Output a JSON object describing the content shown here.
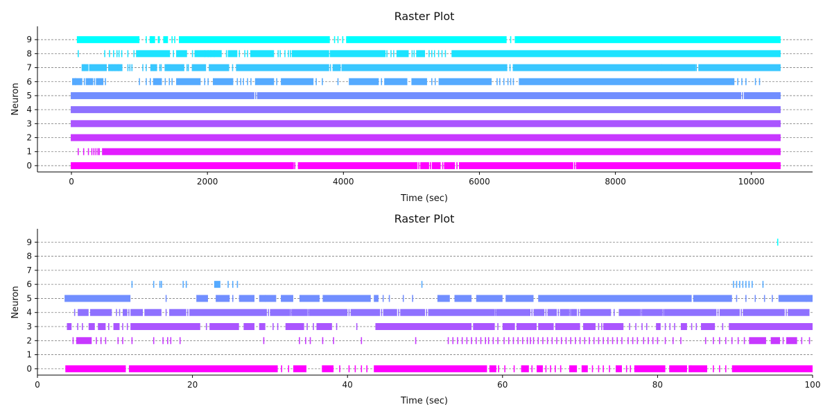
{
  "chart_data": [
    {
      "type": "raster",
      "title": "Raster Plot",
      "xlabel": "Time (sec)",
      "ylabel": "Neuron",
      "xlim": [
        -500,
        10900
      ],
      "ylim": [
        -0.45,
        9.95
      ],
      "xticks": [
        0,
        2000,
        4000,
        6000,
        8000,
        10000
      ],
      "yticks": [
        0,
        1,
        2,
        3,
        4,
        5,
        6,
        7,
        8,
        9
      ],
      "grid": "horizontal dashed",
      "rows": [
        {
          "neuron": 0,
          "color": "#ff00ff",
          "segments": [
            [
              -10,
              3270
            ],
            [
              3330,
              5090
            ],
            [
              5130,
              5260
            ],
            [
              5300,
              5430
            ],
            [
              5480,
              5640
            ],
            [
              5700,
              7380
            ],
            [
              7420,
              10430
            ]
          ],
          "spikes": [
            3230,
            3285,
            5110,
            5280,
            5460,
            5670,
            7400
          ]
        },
        {
          "neuron": 1,
          "color": "#e31cff",
          "segments": [
            [
              450,
              10430
            ]
          ],
          "spikes": [
            100,
            180,
            250,
            300,
            330,
            360,
            390,
            410
          ]
        },
        {
          "neuron": 2,
          "color": "#c738ff",
          "segments": [
            [
              -10,
              10430
            ]
          ],
          "spikes": []
        },
        {
          "neuron": 3,
          "color": "#aa55ff",
          "segments": [
            [
              -10,
              10430
            ]
          ],
          "spikes": []
        },
        {
          "neuron": 4,
          "color": "#8e71ff",
          "segments": [
            [
              -10,
              10430
            ]
          ],
          "spikes": []
        },
        {
          "neuron": 5,
          "color": "#718eff",
          "segments": [
            [
              -10,
              2690
            ],
            [
              2730,
              9850
            ],
            [
              9890,
              10430
            ]
          ],
          "spikes": [
            2710,
            9870
          ]
        },
        {
          "neuron": 6,
          "color": "#55aaff",
          "segments": [
            [
              10,
              160
            ],
            [
              210,
              320
            ],
            [
              360,
              470
            ],
            [
              1200,
              1330
            ],
            [
              1540,
              1900
            ],
            [
              2080,
              2380
            ],
            [
              2700,
              2980
            ],
            [
              3080,
              3560
            ],
            [
              4080,
              4520
            ],
            [
              4600,
              4940
            ],
            [
              5000,
              5230
            ],
            [
              5400,
              6180
            ],
            [
              6580,
              9750
            ]
          ],
          "spikes": [
            60,
            190,
            340,
            500,
            1000,
            1100,
            1160,
            1380,
            1440,
            1480,
            1960,
            2010,
            2440,
            2490,
            2530,
            2590,
            2640,
            3020,
            3600,
            3690,
            3920,
            4560,
            5300,
            5350,
            6260,
            6300,
            6360,
            6420,
            6460,
            6500,
            9800,
            9860,
            9920,
            10060,
            10120
          ]
        },
        {
          "neuron": 7,
          "color": "#38c7ff",
          "segments": [
            [
              150,
              250
            ],
            [
              260,
              520
            ],
            [
              540,
              750
            ],
            [
              1160,
              1260
            ],
            [
              1370,
              1660
            ],
            [
              1770,
              1980
            ],
            [
              2020,
              2320
            ],
            [
              2420,
              3790
            ],
            [
              3840,
              3960
            ],
            [
              3980,
              6410
            ],
            [
              6490,
              9180
            ],
            [
              9220,
              10430
            ]
          ],
          "spikes": [
            190,
            600,
            640,
            690,
            830,
            860,
            890,
            1050,
            1100,
            1300,
            1320,
            1420,
            1450,
            1700,
            1720,
            2370,
            3810,
            3980,
            6450,
            8620,
            8680,
            9190
          ]
        },
        {
          "neuron": 8,
          "color": "#1ce3ff",
          "segments": [
            [
              950,
              1450
            ],
            [
              1540,
              1700
            ],
            [
              1810,
              2210
            ],
            [
              2300,
              2440
            ],
            [
              2630,
              2980
            ],
            [
              3240,
              3790
            ],
            [
              3800,
              4620
            ],
            [
              4780,
              4960
            ],
            [
              5070,
              5200
            ],
            [
              5590,
              10430
            ]
          ],
          "spikes": [
            100,
            490,
            560,
            620,
            670,
            700,
            740,
            830,
            920,
            1500,
            1780,
            1960,
            2010,
            2050,
            2100,
            2280,
            2470,
            2550,
            2590,
            3040,
            3070,
            3140,
            3190,
            3220,
            4640,
            4700,
            4740,
            5010,
            5040,
            5260,
            5300,
            5340,
            5400,
            5450,
            5500
          ]
        },
        {
          "neuron": 9,
          "color": "#00ffff",
          "segments": [
            [
              80,
              1000
            ],
            [
              1150,
              1230
            ],
            [
              1270,
              1300
            ],
            [
              1350,
              1420
            ],
            [
              1580,
              3800
            ],
            [
              4040,
              6400
            ],
            [
              6520,
              10430
            ]
          ],
          "spikes": [
            1100,
            1180,
            1480,
            1520,
            3870,
            3920,
            3990,
            6460
          ]
        }
      ]
    },
    {
      "type": "raster",
      "title": "Raster Plot",
      "xlabel": "Time (sec)",
      "ylabel": "Neuron",
      "xlim": [
        0,
        100
      ],
      "ylim": [
        -0.45,
        9.95
      ],
      "xticks": [
        0,
        20,
        40,
        60,
        80,
        100
      ],
      "yticks": [
        0,
        1,
        2,
        3,
        4,
        5,
        6,
        7,
        8,
        9
      ],
      "grid": "horizontal dashed",
      "rows": [
        {
          "neuron": 0,
          "color": "#ff00ff",
          "segments": [
            [
              3.6,
              11.4
            ],
            [
              11.8,
              31.0
            ],
            [
              33.0,
              34.7
            ],
            [
              36.7,
              38.2
            ],
            [
              43.4,
              58.0
            ],
            [
              58.3,
              59.2
            ],
            [
              62.4,
              63.4
            ],
            [
              64.4,
              65.2
            ],
            [
              68.6,
              69.6
            ],
            [
              70.2,
              71.0
            ],
            [
              74.6,
              75.4
            ],
            [
              77.0,
              81.0
            ],
            [
              81.5,
              83.8
            ],
            [
              84.0,
              86.4
            ],
            [
              89.6,
              100.0
            ]
          ],
          "spikes": [
            31.5,
            32.4,
            39.0,
            40.2,
            41.0,
            41.8,
            42.5,
            59.5,
            60.3,
            61.5,
            63.8,
            65.6,
            66.2,
            66.8,
            67.5,
            71.6,
            72.4,
            73.0,
            73.8,
            76.0,
            76.5,
            84.3,
            87.2,
            88.0,
            88.8
          ]
        },
        {
          "neuron": 1,
          "color": "#e31cff",
          "segments": [],
          "spikes": []
        },
        {
          "neuron": 2,
          "color": "#c738ff",
          "segments": [
            [
              5.0,
              7.0
            ],
            [
              91.8,
              94.0
            ],
            [
              94.6,
              95.8
            ],
            [
              96.6,
              98.0
            ]
          ],
          "spikes": [
            4.6,
            7.6,
            8.2,
            8.8,
            10.4,
            11.0,
            12.2,
            15.0,
            16.2,
            16.8,
            17.2,
            18.4,
            29.2,
            33.8,
            34.6,
            35.2,
            36.8,
            38.2,
            41.8,
            48.8,
            53.0,
            53.6,
            54.2,
            54.8,
            55.4,
            56.0,
            56.6,
            57.2,
            57.8,
            58.2,
            58.8,
            59.4,
            60.2,
            60.8,
            61.4,
            62.0,
            62.6,
            63.2,
            63.6,
            64.0,
            64.6,
            65.2,
            65.8,
            66.4,
            67.0,
            67.6,
            68.2,
            68.8,
            69.4,
            70.0,
            70.6,
            71.2,
            71.8,
            72.4,
            73.0,
            73.6,
            74.2,
            74.8,
            75.4,
            76.2,
            76.8,
            77.4,
            78.2,
            78.8,
            79.4,
            80.0,
            81.0,
            82.0,
            83.0,
            86.2,
            87.2,
            88.0,
            88.8,
            89.6,
            90.4,
            91.2,
            96.2,
            98.6,
            99.6
          ]
        },
        {
          "neuron": 3,
          "color": "#aa55ff",
          "segments": [
            [
              3.8,
              4.4
            ],
            [
              6.6,
              7.4
            ],
            [
              7.8,
              8.8
            ],
            [
              9.8,
              10.6
            ],
            [
              12.0,
              21.0
            ],
            [
              22.2,
              26.0
            ],
            [
              26.6,
              28.0
            ],
            [
              28.6,
              29.4
            ],
            [
              32.0,
              34.4
            ],
            [
              36.0,
              38.0
            ],
            [
              43.6,
              56.0
            ],
            [
              56.2,
              59.0
            ],
            [
              60.0,
              61.6
            ],
            [
              61.8,
              64.4
            ],
            [
              64.6,
              66.6
            ],
            [
              66.8,
              70.0
            ],
            [
              70.4,
              72.0
            ],
            [
              73.0,
              75.6
            ],
            [
              79.8,
              80.4
            ],
            [
              83.0,
              83.8
            ],
            [
              85.6,
              87.4
            ],
            [
              89.2,
              100.0
            ]
          ],
          "spikes": [
            5.2,
            5.8,
            9.2,
            11.0,
            11.6,
            21.8,
            30.4,
            31.0,
            34.8,
            35.6,
            38.6,
            41.2,
            59.4,
            67.0,
            72.4,
            72.8,
            76.4,
            77.2,
            78.0,
            78.6,
            81.0,
            81.6,
            82.2,
            84.4,
            85.0,
            88.4
          ]
        },
        {
          "neuron": 4,
          "color": "#8e71ff",
          "segments": [
            [
              5.2,
              6.6
            ],
            [
              6.8,
              9.6
            ],
            [
              11.0,
              11.6
            ],
            [
              12.0,
              13.6
            ],
            [
              13.8,
              16.0
            ],
            [
              17.0,
              19.2
            ],
            [
              19.6,
              29.6
            ],
            [
              30.0,
              32.6
            ],
            [
              32.8,
              34.8
            ],
            [
              35.0,
              40.0
            ],
            [
              40.4,
              44.2
            ],
            [
              44.6,
              46.4
            ],
            [
              46.8,
              50.0
            ],
            [
              50.4,
              59.0
            ],
            [
              59.2,
              63.6
            ],
            [
              64.0,
              65.4
            ],
            [
              65.8,
              67.0
            ],
            [
              67.4,
              68.6
            ],
            [
              68.8,
              69.6
            ],
            [
              70.0,
              74.0
            ],
            [
              75.0,
              77.8
            ],
            [
              78.0,
              80.6
            ],
            [
              80.8,
              87.6
            ],
            [
              88.0,
              90.6
            ],
            [
              91.0,
              96.4
            ],
            [
              96.8,
              99.6
            ]
          ],
          "spikes": [
            4.8,
            10.2,
            10.6,
            11.8,
            16.6,
            19.4,
            29.8,
            32.7,
            34.9,
            40.2,
            44.4,
            46.6,
            50.2,
            59.1,
            63.8,
            65.6,
            67.2,
            68.7,
            69.8,
            74.4,
            77.9,
            80.7,
            87.8,
            90.8,
            96.6
          ]
        },
        {
          "neuron": 5,
          "color": "#718eff",
          "segments": [
            [
              3.5,
              12.0
            ],
            [
              20.5,
              22.0
            ],
            [
              23.0,
              24.8
            ],
            [
              26.0,
              28.0
            ],
            [
              28.6,
              30.8
            ],
            [
              31.4,
              33.0
            ],
            [
              33.8,
              36.4
            ],
            [
              36.8,
              43.0
            ],
            [
              43.4,
              44.0
            ],
            [
              51.6,
              53.2
            ],
            [
              53.8,
              56.0
            ],
            [
              56.6,
              60.0
            ],
            [
              60.4,
              64.0
            ],
            [
              64.6,
              84.4
            ],
            [
              84.6,
              89.6
            ],
            [
              95.6,
              100.0
            ]
          ],
          "spikes": [
            16.6,
            25.2,
            29.4,
            44.6,
            45.4,
            47.2,
            48.4,
            90.2,
            91.4,
            92.6,
            93.8,
            94.8,
            99.2,
            99.8
          ]
        },
        {
          "neuron": 6,
          "color": "#55aaff",
          "segments": [
            [
              22.8,
              23.6
            ]
          ],
          "spikes": [
            12.2,
            15.0,
            15.8,
            16.0,
            18.8,
            19.2,
            24.6,
            25.2,
            25.8,
            49.6,
            89.8,
            90.2,
            90.6,
            91.0,
            91.4,
            91.8,
            92.2,
            93.6
          ]
        },
        {
          "neuron": 7,
          "color": "#38c7ff",
          "segments": [],
          "spikes": []
        },
        {
          "neuron": 8,
          "color": "#1ce3ff",
          "segments": [],
          "spikes": []
        },
        {
          "neuron": 9,
          "color": "#00ffff",
          "segments": [],
          "spikes": [
            95.5
          ]
        }
      ]
    }
  ]
}
